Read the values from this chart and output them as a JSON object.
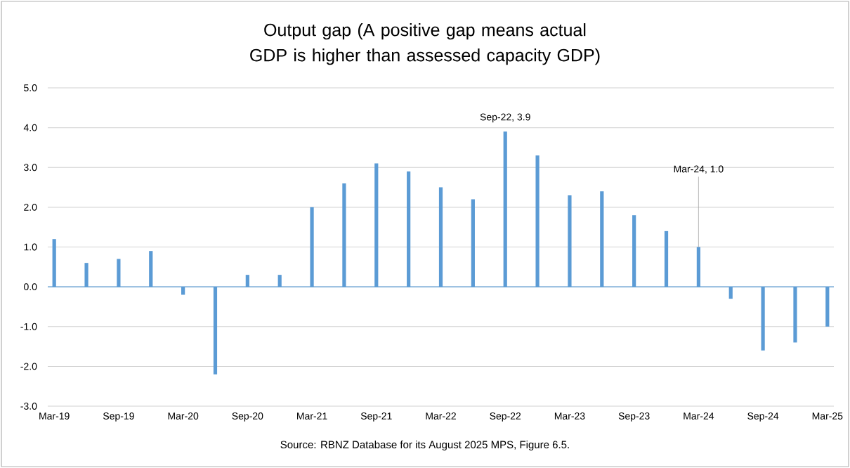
{
  "chart_data": {
    "type": "bar",
    "title": "Output gap (A positive gap means actual GDP is higher than assessed capacity GDP)",
    "categories": [
      "Mar-19",
      null,
      "Sep-19",
      null,
      "Mar-20",
      null,
      "Sep-20",
      null,
      "Mar-21",
      null,
      "Sep-21",
      null,
      "Mar-22",
      null,
      "Sep-22",
      null,
      "Mar-23",
      null,
      "Sep-23",
      null,
      "Mar-24",
      null,
      "Sep-24",
      null,
      "Mar-25"
    ],
    "values": [
      1.2,
      0.6,
      0.7,
      0.9,
      -0.2,
      -2.2,
      0.3,
      0.3,
      2.0,
      2.6,
      3.1,
      2.9,
      2.5,
      2.2,
      3.9,
      3.3,
      2.3,
      2.4,
      1.8,
      1.4,
      1.0,
      -0.3,
      -1.6,
      -1.4,
      -1.0
    ],
    "color": "#5b9bd5",
    "ylim": [
      -3,
      5
    ],
    "yticks": [
      {
        "value": -3,
        "label": "-3.0"
      },
      {
        "value": -2,
        "label": "-2.0"
      },
      {
        "value": -1,
        "label": "-1.0"
      },
      {
        "value": 0,
        "label": "0.0"
      },
      {
        "value": 1,
        "label": "1.0"
      },
      {
        "value": 2,
        "label": "2.0"
      },
      {
        "value": 3,
        "label": "3.0"
      },
      {
        "value": 4,
        "label": "4.0"
      },
      {
        "value": 5,
        "label": "5.0"
      }
    ],
    "grid": "y",
    "ref_lines": [
      {
        "axis": "y",
        "value": 0,
        "color": "#5b9bd5"
      }
    ],
    "annotations": [
      {
        "text": "Sep-22, 3.9",
        "x": "Sep-22",
        "y": 3.9
      },
      {
        "text": "Mar-24, 1.0",
        "x": "Mar-24",
        "y": 1.0
      },
      "Source: RBNZ Database for its August 2025 MPS, Figure 6.5."
    ]
  }
}
